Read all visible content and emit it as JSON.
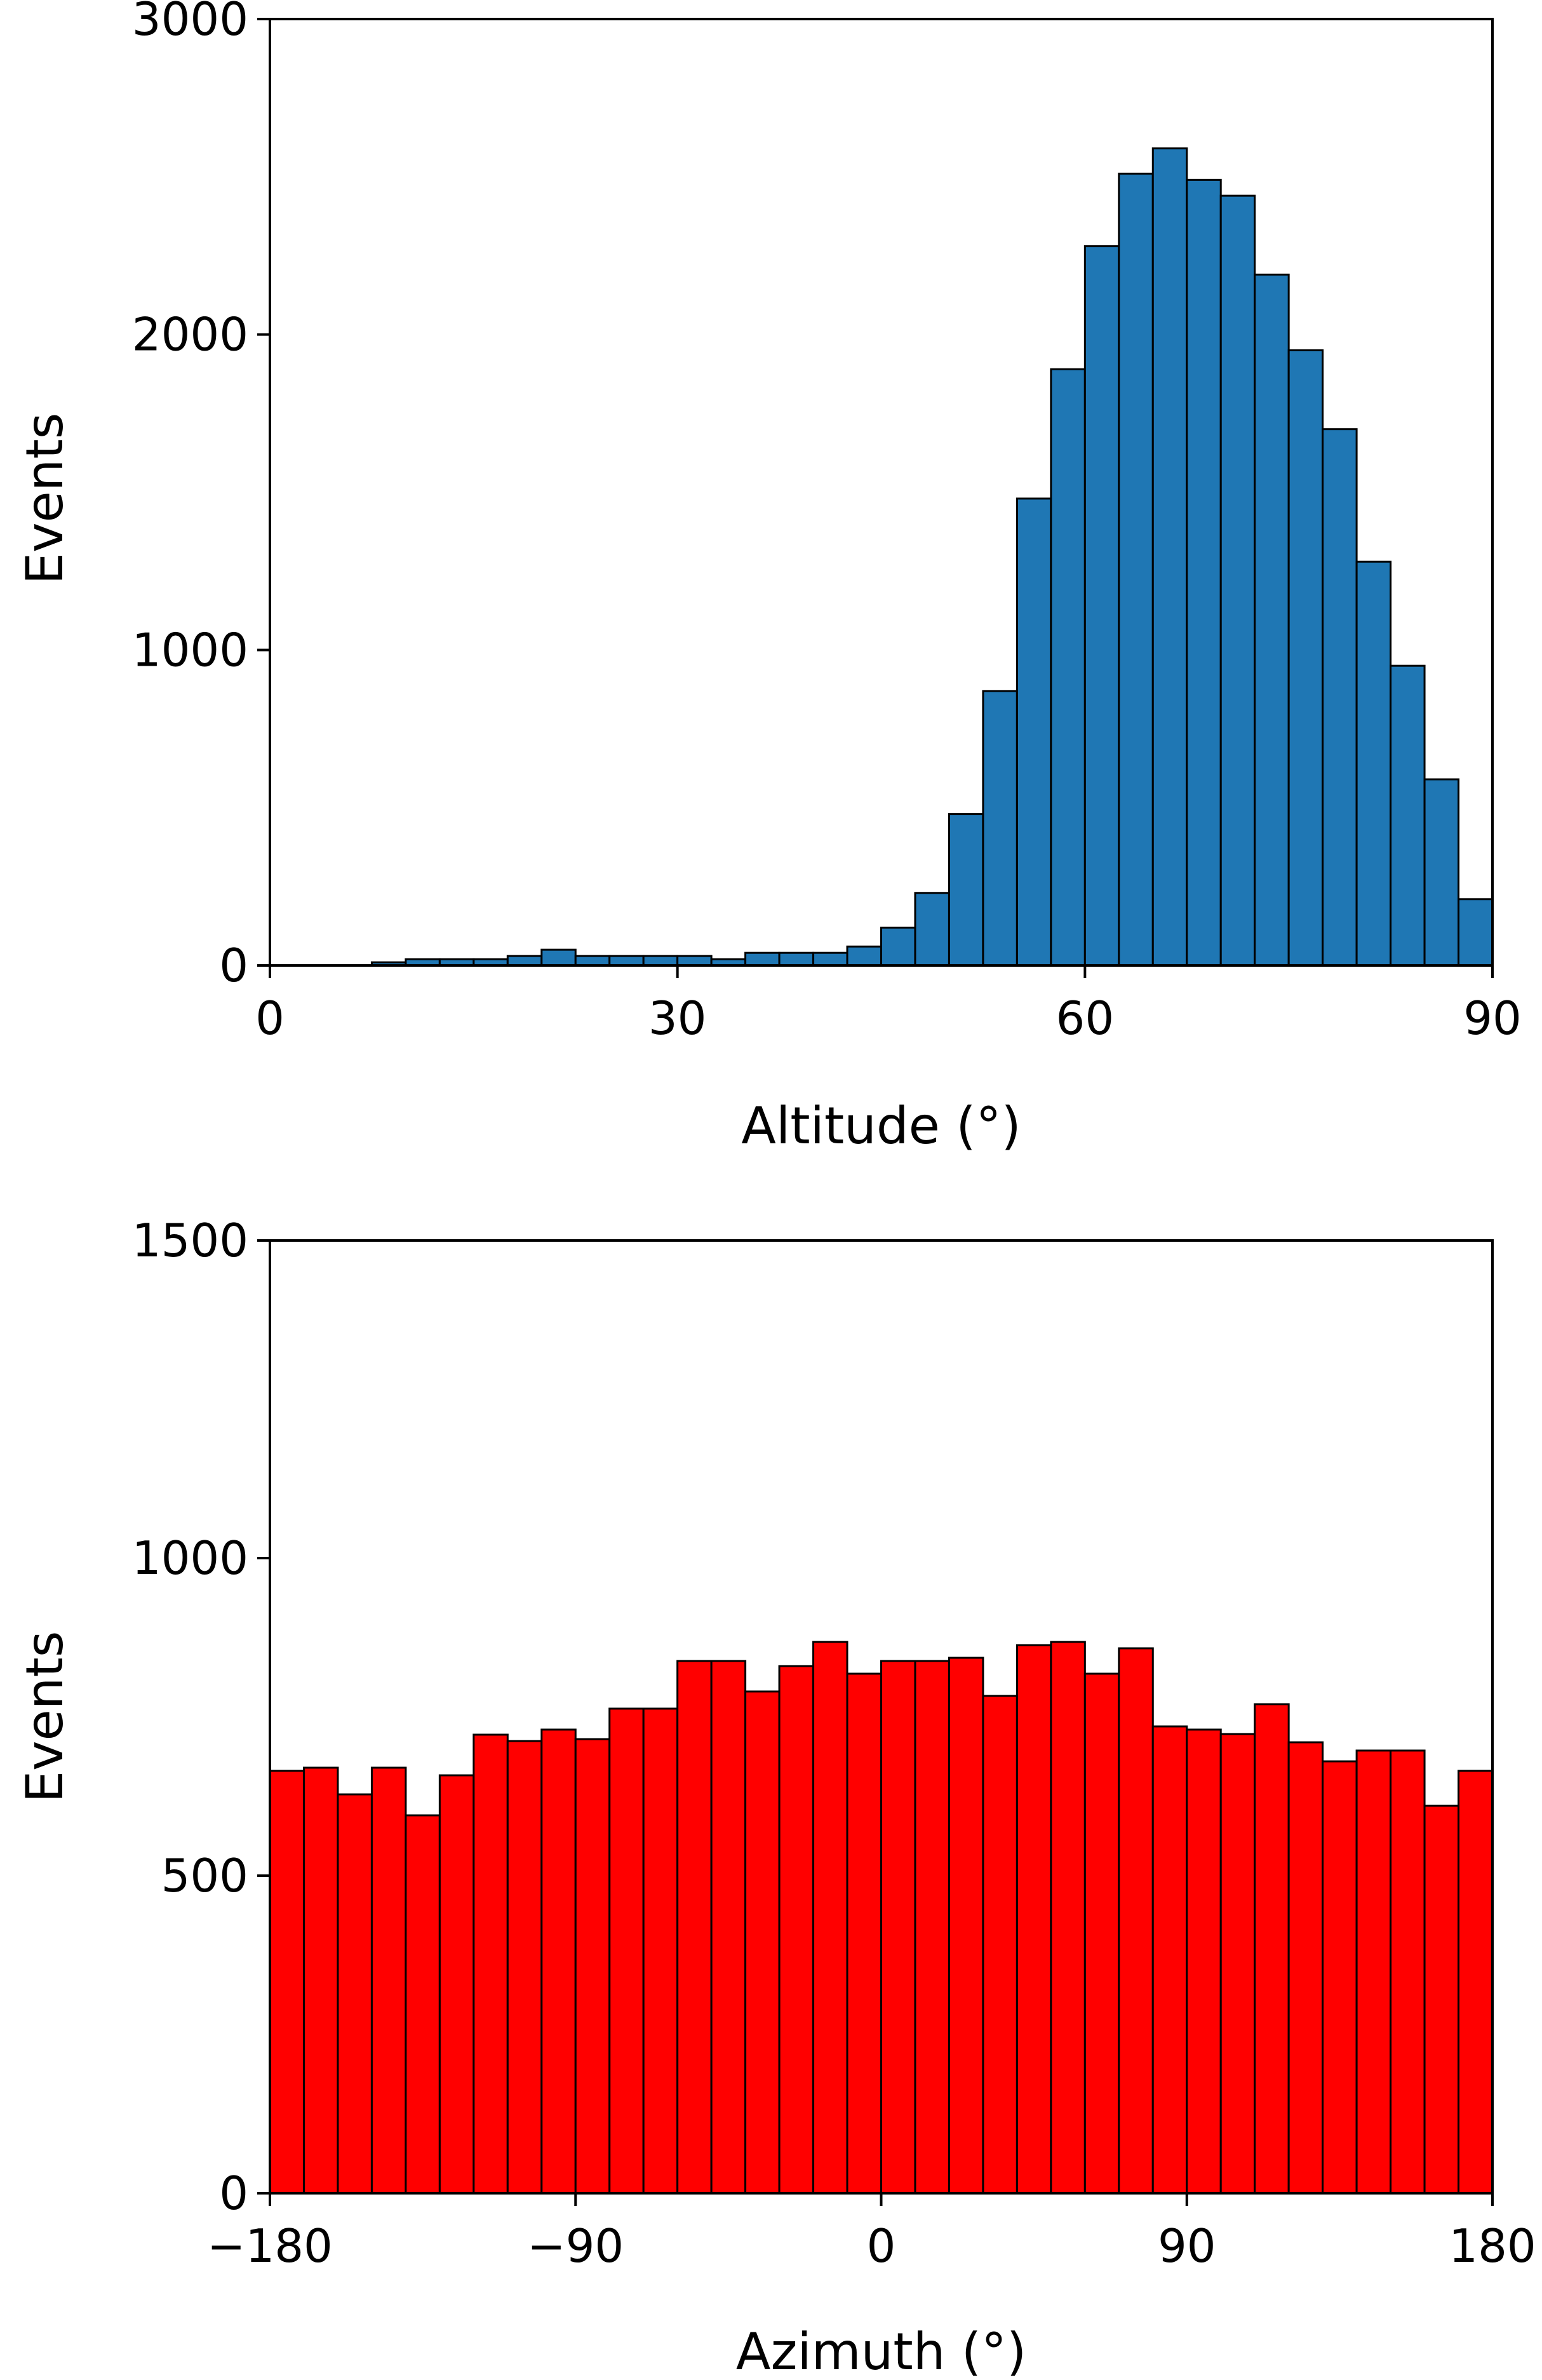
{
  "chart_data": [
    {
      "type": "bar",
      "subtype": "histogram",
      "xlabel": "Altitude (°)",
      "ylabel": "Events",
      "xlim": [
        0,
        90
      ],
      "ylim": [
        0,
        3000
      ],
      "xticks": [
        "0",
        "30",
        "60",
        "90"
      ],
      "yticks": [
        "0",
        "1000",
        "2000",
        "3000"
      ],
      "bin_width": 2.5,
      "bin_edges_start": 0,
      "values": [
        0,
        0,
        0,
        10,
        20,
        20,
        20,
        30,
        50,
        30,
        30,
        30,
        30,
        20,
        40,
        40,
        40,
        60,
        120,
        230,
        480,
        870,
        1480,
        1890,
        2280,
        2510,
        2590,
        2490,
        2440,
        2190,
        1950,
        1700,
        1280,
        950,
        590,
        210
      ],
      "color": "#1f77b4",
      "edgecolor": "#000000",
      "grid": false
    },
    {
      "type": "bar",
      "subtype": "histogram",
      "xlabel": "Azimuth (°)",
      "ylabel": "Events",
      "xlim": [
        -180,
        180
      ],
      "ylim": [
        0,
        1500
      ],
      "xticks": [
        "−180",
        "−90",
        "0",
        "90",
        "180"
      ],
      "yticks": [
        "0",
        "500",
        "1000",
        "1500"
      ],
      "bin_width": 10,
      "bin_edges_start": -180,
      "values": [
        665,
        670,
        628,
        670,
        595,
        658,
        722,
        712,
        730,
        715,
        763,
        763,
        838,
        838,
        790,
        830,
        868,
        818,
        838,
        838,
        843,
        783,
        863,
        868,
        818,
        858,
        735,
        730,
        723,
        770,
        710,
        680,
        697,
        697,
        610,
        665
      ],
      "color": "#ff0000",
      "edgecolor": "#000000",
      "grid": false
    }
  ]
}
